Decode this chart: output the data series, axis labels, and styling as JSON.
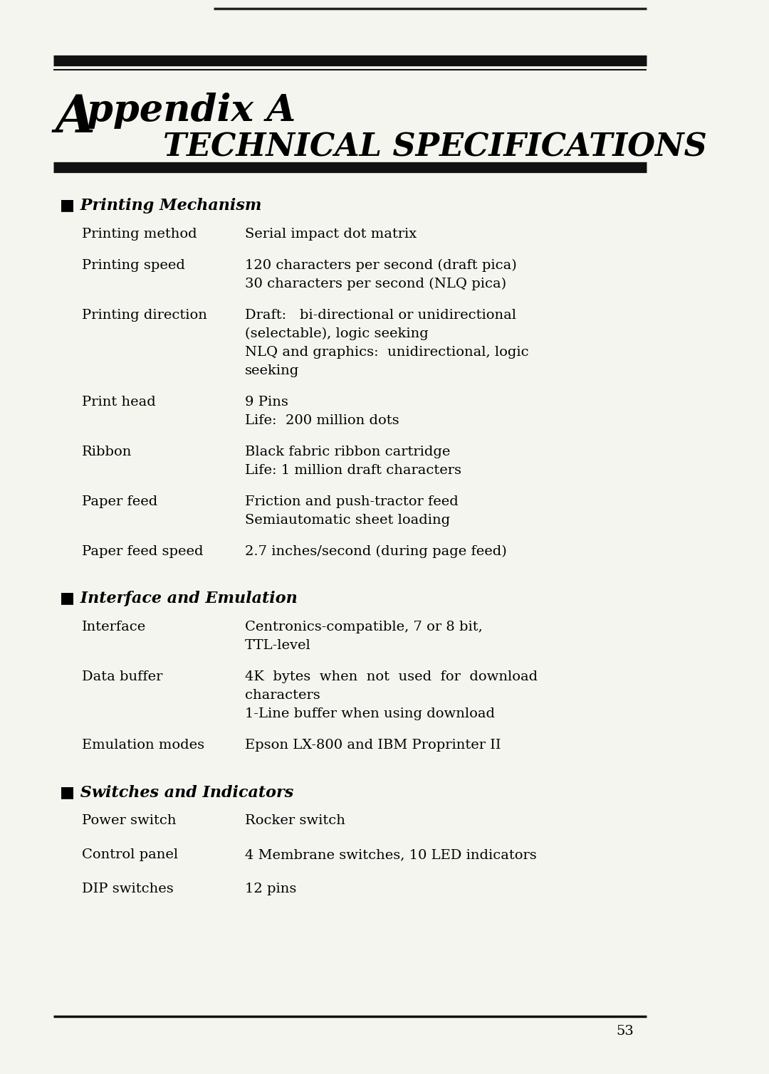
{
  "bg_color": "#f5f5f0",
  "text_color": "#000000",
  "page_number": "53",
  "title_A": "A",
  "title_rest": "ppendix A",
  "subtitle": "TECHNICAL SPECIFICATIONS",
  "sections": [
    {
      "header": "■ Printing Mechanism",
      "items": [
        {
          "label": "Printing method",
          "value": "Serial impact dot matrix"
        },
        {
          "label": "Printing speed",
          "value": "120 characters per second (draft pica)\n30 characters per second (NLQ pica)"
        },
        {
          "label": "Printing direction",
          "value": "Draft:   bi-directional or unidirectional\n(selectable), logic seeking\nNLQ and graphics:  unidirectional, logic\nseeking"
        },
        {
          "label": "Print head",
          "value": "9 Pins\nLife:  200 million dots"
        },
        {
          "label": "Ribbon",
          "value": "Black fabric ribbon cartridge\nLife: 1 million draft characters"
        },
        {
          "label": "Paper feed",
          "value": "Friction and push-tractor feed\nSemiautomatic sheet loading"
        },
        {
          "label": "Paper feed speed",
          "value": "2.7 inches/second (during page feed)"
        }
      ]
    },
    {
      "header": "■ Interface and Emulation",
      "items": [
        {
          "label": "Interface",
          "value": "Centronics-compatible, 7 or 8 bit,\nTTL-level"
        },
        {
          "label": "Data buffer",
          "value": "4K  bytes  when  not  used  for  download\ncharacters\n1-Line buffer when using download"
        },
        {
          "label": "Emulation modes",
          "value": "Epson LX-800 and IBM Proprinter II"
        }
      ]
    },
    {
      "header": "■ Switches and Indicators",
      "items": [
        {
          "label": "Power switch",
          "value": "Rocker switch"
        },
        {
          "label": "Control panel",
          "value": "4 Membrane switches, 10 LED indicators"
        },
        {
          "label": "DIP switches",
          "value": "12 pins"
        }
      ]
    }
  ]
}
